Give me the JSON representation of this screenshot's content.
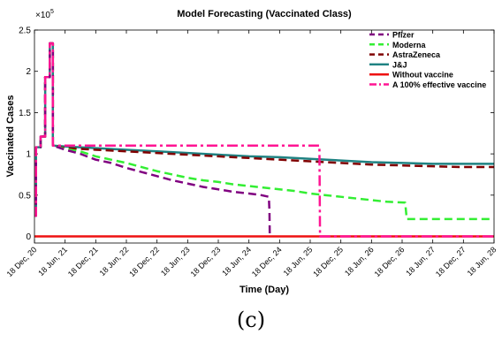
{
  "caption": "(c)",
  "chart_data": {
    "type": "line",
    "title": "Model Forecasting (Vaccinated Class)",
    "xlabel": "Time (Day)",
    "ylabel": "Vaccinated Cases",
    "y_exponent_label": "×10",
    "y_exponent_power": "5",
    "ylim": [
      -0.08,
      2.5
    ],
    "xlim": [
      0,
      15
    ],
    "x_ticks": [
      {
        "x": 0,
        "label": "18 Dec, 20"
      },
      {
        "x": 1,
        "label": "18 Jun, 21"
      },
      {
        "x": 2,
        "label": "18 Dec, 21"
      },
      {
        "x": 3,
        "label": "18 Jun, 22"
      },
      {
        "x": 4,
        "label": "18 Dec, 22"
      },
      {
        "x": 5,
        "label": "18 Jun, 23"
      },
      {
        "x": 6,
        "label": "18 Dec, 23"
      },
      {
        "x": 7,
        "label": "18 Jun, 24"
      },
      {
        "x": 8,
        "label": "18 Dec, 24"
      },
      {
        "x": 9,
        "label": "18 Jun, 25"
      },
      {
        "x": 10,
        "label": "18 Dec, 25"
      },
      {
        "x": 11,
        "label": "18 Jun, 26"
      },
      {
        "x": 12,
        "label": "18 Dec, 26"
      },
      {
        "x": 13,
        "label": "18 Jun, 27"
      },
      {
        "x": 14,
        "label": "18 Dec, 27"
      },
      {
        "x": 15,
        "label": "18 Jun, 28"
      }
    ],
    "y_ticks": [
      {
        "y": 0,
        "label": "0"
      },
      {
        "y": 0.5,
        "label": "0.5"
      },
      {
        "y": 1,
        "label": "1"
      },
      {
        "y": 1.5,
        "label": "1.5"
      },
      {
        "y": 2,
        "label": "2"
      },
      {
        "y": 2.5,
        "label": "2.5"
      }
    ],
    "legend_position": "top-right",
    "series": [
      {
        "name": "Pfizer",
        "color": "#800080",
        "style": "dashed",
        "z": 4,
        "points": [
          [
            0,
            0.25
          ],
          [
            0.05,
            0.25
          ],
          [
            0.05,
            1.08
          ],
          [
            0.2,
            1.08
          ],
          [
            0.2,
            1.21
          ],
          [
            0.35,
            1.21
          ],
          [
            0.35,
            1.93
          ],
          [
            0.5,
            1.93
          ],
          [
            0.5,
            2.34
          ],
          [
            0.6,
            2.34
          ],
          [
            0.6,
            1.1
          ],
          [
            1,
            1.05
          ],
          [
            1.5,
            1.0
          ],
          [
            2,
            0.93
          ],
          [
            2.5,
            0.89
          ],
          [
            3,
            0.83
          ],
          [
            3.5,
            0.78
          ],
          [
            4,
            0.73
          ],
          [
            4.5,
            0.68
          ],
          [
            5,
            0.64
          ],
          [
            5.5,
            0.6
          ],
          [
            6,
            0.57
          ],
          [
            6.5,
            0.54
          ],
          [
            7,
            0.52
          ],
          [
            7.4,
            0.5
          ],
          [
            7.65,
            0.48
          ],
          [
            7.67,
            0.3
          ],
          [
            7.68,
            0
          ]
        ]
      },
      {
        "name": "Moderna",
        "color": "#33ee33",
        "style": "dashed",
        "z": 3,
        "points": [
          [
            0,
            0.25
          ],
          [
            0.05,
            0.25
          ],
          [
            0.05,
            1.08
          ],
          [
            0.2,
            1.08
          ],
          [
            0.2,
            1.21
          ],
          [
            0.35,
            1.21
          ],
          [
            0.35,
            1.93
          ],
          [
            0.5,
            1.93
          ],
          [
            0.5,
            2.34
          ],
          [
            0.6,
            2.34
          ],
          [
            0.6,
            1.1
          ],
          [
            1,
            1.06
          ],
          [
            1.5,
            1.03
          ],
          [
            2,
            0.97
          ],
          [
            2.5,
            0.93
          ],
          [
            3,
            0.89
          ],
          [
            3.5,
            0.84
          ],
          [
            4,
            0.79
          ],
          [
            4.5,
            0.75
          ],
          [
            5,
            0.71
          ],
          [
            5.5,
            0.68
          ],
          [
            6,
            0.66
          ],
          [
            6.5,
            0.63
          ],
          [
            7,
            0.61
          ],
          [
            7.5,
            0.59
          ],
          [
            8,
            0.57
          ],
          [
            8.5,
            0.55
          ],
          [
            9,
            0.52
          ],
          [
            9.5,
            0.5
          ],
          [
            10,
            0.48
          ],
          [
            10.5,
            0.46
          ],
          [
            11,
            0.44
          ],
          [
            11.5,
            0.42
          ],
          [
            12.1,
            0.41
          ],
          [
            12.15,
            0.21
          ],
          [
            15,
            0.21
          ]
        ]
      },
      {
        "name": "AstraZeneca",
        "color": "#800000",
        "style": "dashed",
        "z": 2,
        "points": [
          [
            0,
            0.25
          ],
          [
            0.05,
            0.25
          ],
          [
            0.05,
            1.08
          ],
          [
            0.2,
            1.08
          ],
          [
            0.2,
            1.21
          ],
          [
            0.35,
            1.21
          ],
          [
            0.35,
            1.93
          ],
          [
            0.5,
            1.93
          ],
          [
            0.5,
            2.34
          ],
          [
            0.6,
            2.34
          ],
          [
            0.6,
            1.1
          ],
          [
            1,
            1.07
          ],
          [
            2,
            1.05
          ],
          [
            3,
            1.03
          ],
          [
            4,
            1.01
          ],
          [
            5,
            0.99
          ],
          [
            6,
            0.97
          ],
          [
            7,
            0.95
          ],
          [
            8,
            0.93
          ],
          [
            9,
            0.91
          ],
          [
            10,
            0.89
          ],
          [
            11,
            0.87
          ],
          [
            12,
            0.86
          ],
          [
            13,
            0.85
          ],
          [
            14,
            0.84
          ],
          [
            15,
            0.84
          ]
        ]
      },
      {
        "name": "J&J",
        "color": "#1f8282",
        "style": "solid",
        "z": 1,
        "points": [
          [
            0,
            0.25
          ],
          [
            0.05,
            0.25
          ],
          [
            0.05,
            1.08
          ],
          [
            0.2,
            1.08
          ],
          [
            0.2,
            1.21
          ],
          [
            0.35,
            1.21
          ],
          [
            0.35,
            1.93
          ],
          [
            0.5,
            1.93
          ],
          [
            0.5,
            2.34
          ],
          [
            0.6,
            2.34
          ],
          [
            0.6,
            1.1
          ],
          [
            1,
            1.09
          ],
          [
            2,
            1.07
          ],
          [
            3,
            1.05
          ],
          [
            4,
            1.03
          ],
          [
            5,
            1.01
          ],
          [
            6,
            0.99
          ],
          [
            7,
            0.97
          ],
          [
            8,
            0.96
          ],
          [
            9,
            0.94
          ],
          [
            10,
            0.92
          ],
          [
            11,
            0.9
          ],
          [
            12,
            0.89
          ],
          [
            13,
            0.88
          ],
          [
            14,
            0.88
          ],
          [
            15,
            0.88
          ]
        ]
      },
      {
        "name": "Without vaccine",
        "color": "#ee1111",
        "style": "solid",
        "z": 0,
        "points": [
          [
            0,
            0
          ],
          [
            15,
            0
          ]
        ]
      },
      {
        "name": "A 100% effective vaccine",
        "color": "#ff1493",
        "style": "dashdot",
        "z": 5,
        "points": [
          [
            0,
            0.25
          ],
          [
            0.05,
            0.25
          ],
          [
            0.05,
            1.08
          ],
          [
            0.2,
            1.08
          ],
          [
            0.2,
            1.21
          ],
          [
            0.35,
            1.21
          ],
          [
            0.35,
            1.93
          ],
          [
            0.5,
            1.93
          ],
          [
            0.5,
            2.34
          ],
          [
            0.6,
            2.34
          ],
          [
            0.6,
            1.1
          ],
          [
            9.3,
            1.1
          ],
          [
            9.32,
            0
          ],
          [
            15,
            0
          ]
        ]
      }
    ]
  }
}
